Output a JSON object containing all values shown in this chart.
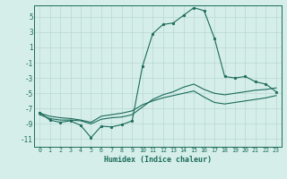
{
  "xlabel": "Humidex (Indice chaleur)",
  "background_color": "#d6eeea",
  "line_color": "#1a6b5a",
  "grid_color": "#b8d8d4",
  "xlim": [
    -0.5,
    23.5
  ],
  "ylim": [
    -12.0,
    6.5
  ],
  "xticks": [
    0,
    1,
    2,
    3,
    4,
    5,
    6,
    7,
    8,
    9,
    10,
    11,
    12,
    13,
    14,
    15,
    16,
    17,
    18,
    19,
    20,
    21,
    22,
    23
  ],
  "yticks": [
    -11,
    -9,
    -7,
    -5,
    -3,
    -1,
    1,
    3,
    5
  ],
  "curve1_x": [
    0,
    1,
    2,
    3,
    4,
    5,
    6,
    7,
    8,
    9,
    10,
    11,
    12,
    13,
    14,
    15,
    16,
    17,
    18,
    19,
    20,
    21,
    22,
    23
  ],
  "curve1_y": [
    -7.5,
    -8.5,
    -8.8,
    -8.6,
    -9.2,
    -10.8,
    -9.3,
    -9.4,
    -9.1,
    -8.6,
    -1.5,
    2.8,
    4.0,
    4.2,
    5.2,
    6.2,
    5.8,
    2.2,
    -2.8,
    -3.0,
    -2.8,
    -3.5,
    -3.8,
    -4.8
  ],
  "curve2_x": [
    0,
    1,
    2,
    3,
    4,
    5,
    6,
    7,
    8,
    9,
    10,
    11,
    12,
    13,
    14,
    15,
    16,
    17,
    18,
    19,
    20,
    21,
    22,
    23
  ],
  "curve2_y": [
    -7.8,
    -8.3,
    -8.5,
    -8.5,
    -8.6,
    -9.0,
    -8.4,
    -8.2,
    -8.1,
    -7.8,
    -6.8,
    -5.8,
    -5.2,
    -4.8,
    -4.2,
    -3.8,
    -4.5,
    -5.0,
    -5.2,
    -5.0,
    -4.8,
    -4.6,
    -4.5,
    -4.3
  ],
  "curve3_x": [
    0,
    1,
    2,
    3,
    4,
    5,
    6,
    7,
    8,
    9,
    10,
    11,
    12,
    13,
    14,
    15,
    16,
    17,
    18,
    19,
    20,
    21,
    22,
    23
  ],
  "curve3_y": [
    -7.6,
    -8.0,
    -8.2,
    -8.3,
    -8.5,
    -8.8,
    -8.0,
    -7.8,
    -7.6,
    -7.3,
    -6.5,
    -6.0,
    -5.6,
    -5.3,
    -5.0,
    -4.7,
    -5.5,
    -6.2,
    -6.4,
    -6.2,
    -6.0,
    -5.8,
    -5.6,
    -5.3
  ]
}
